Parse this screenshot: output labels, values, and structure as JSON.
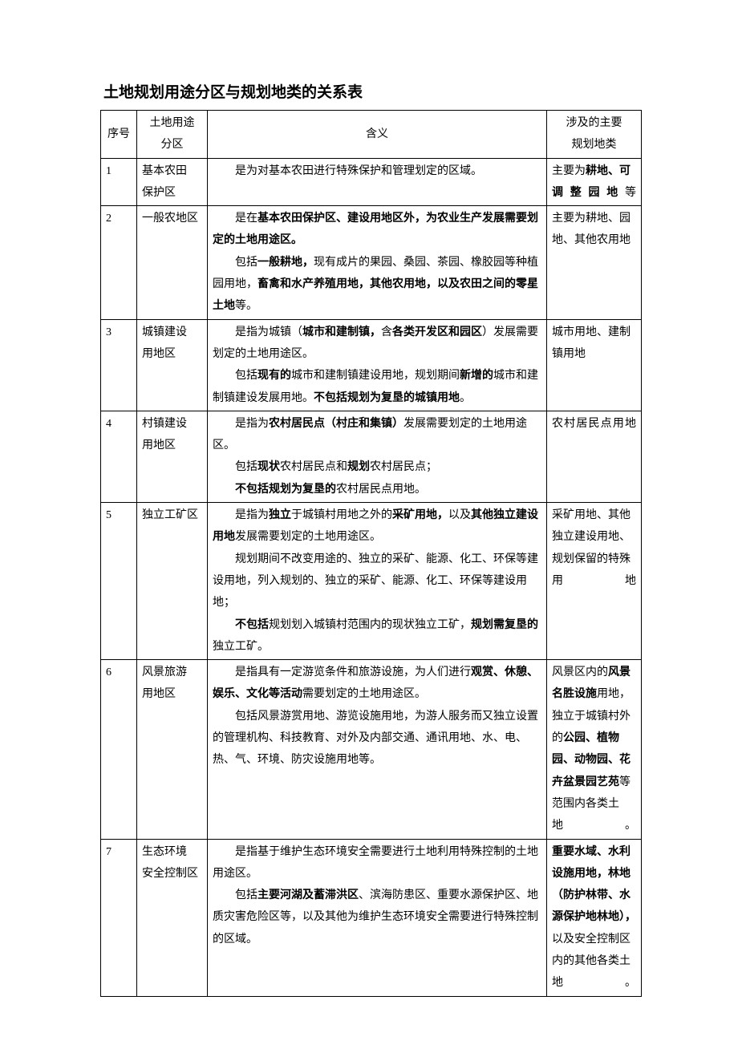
{
  "title": "土地规划用途分区与规划地类的关系表",
  "headers": {
    "seq": "序号",
    "zone_line1": "土地用途",
    "zone_line2": "分区",
    "meaning": "含义",
    "land_line1": "涉及的主要",
    "land_line2": "规划地类"
  },
  "rows": [
    {
      "seq": "1",
      "zone_lines": [
        "基本农田",
        "保护区"
      ],
      "meaning_paragraphs": [
        "是为对基本农田进行特殊保护和管理划定的区域。"
      ],
      "land_html": "主要为<b>耕地、可调整园地</b>等",
      "land_justify": true
    },
    {
      "seq": "2",
      "zone_lines": [
        "一般农地区"
      ],
      "meaning_paragraphs": [
        "是在<b>基本农田保护区、建设用地区外，为农业生产发展需要划定的土地用途区。</b>",
        "包括<b>一般耕地，</b>现有成片的果园、桑园、茶园、橡胶园等种植园用地，<b>畜禽和水产养殖用地，其他农用地，以及农田之间的零星土地</b>等。"
      ],
      "land_html": "主要为耕地、园地、其他农用地",
      "land_justify": false
    },
    {
      "seq": "3",
      "zone_lines": [
        "城镇建设",
        "用地区"
      ],
      "meaning_paragraphs": [
        "是指为城镇（<b>城市和建制镇，</b>含<b>各类开发区和园区</b>）发展需要划定的土地用途区。",
        "包括<b>现有的</b>城市和建制镇建设用地，规划期间<b>新增的</b>城市和建制镇建设发展用地。<b>不包括规划为复垦的城镇用地</b>。"
      ],
      "land_html": "城市用地、建制镇用地",
      "land_justify": false
    },
    {
      "seq": "4",
      "zone_lines": [
        "村镇建设",
        "用地区"
      ],
      "meaning_paragraphs": [
        "是指为<b>农村居民点（村庄和集镇）</b>发展需要划定的土地用途区。",
        "包括<b>现状</b>农村居民点和<b>规划</b>农村居民点；",
        "<b>不包括规划为复垦的</b>农村居民点用地。"
      ],
      "land_html": "农村居民点用地",
      "land_justify": true
    },
    {
      "seq": "5",
      "zone_lines": [
        "独立工矿区"
      ],
      "meaning_paragraphs": [
        "是指为<b>独立</b>于城镇村用地之外的<b>采矿用地，</b>以及<b>其他独立建设用地</b>发展需要划定的土地用途区。",
        "规划期间不改变用途的、独立的采矿、能源、化工、环保等建设用地，列入规划的、独立的采矿、能源、化工、环保等建设用地；",
        "<b>不包括</b>规划划入城镇村范围内的现状独立工矿，<b>规划需复垦的</b>独立工矿。"
      ],
      "land_html": "采矿用地、其他独立建设用地、规划保留的特殊用地",
      "land_justify": true
    },
    {
      "seq": "6",
      "zone_lines": [
        "风景旅游",
        "用地区"
      ],
      "meaning_paragraphs": [
        "是指具有一定游览条件和旅游设施，为人们进行<b>观赏、休憩、娱乐、文化等活动</b>需要划定的土地用途区。",
        "包括风景游赏用地、游览设施用地，为游人服务而又独立设置的管理机构、科技教育、对外及内部交通、通讯用地、水、电、热、气、环境、防灾设施用地等。"
      ],
      "land_html": "风景区内的<b>风景名胜设施</b>用地，独立于城镇村外的<b>公园、植物园、动物园、花卉盆景园艺苑</b>等范围内各类土地。",
      "land_justify": true
    },
    {
      "seq": "7",
      "zone_lines": [
        "生态环境",
        "安全控制区"
      ],
      "meaning_paragraphs": [
        "是指基于维护生态环境安全需要进行土地利用特殊控制的土地用途区。",
        "包括<b>主要河湖及蓄滞洪区</b>、滨海防患区、重要水源保护区、地质灾害危险区等，以及其他为维护生态环境安全需要进行特殊控制的区域。"
      ],
      "land_html": "<b>重要水域、水利设施用地，林地（防护林带、水源保护地林地），</b>以及安全控制区内的其他各类土地。",
      "land_justify": true
    }
  ]
}
